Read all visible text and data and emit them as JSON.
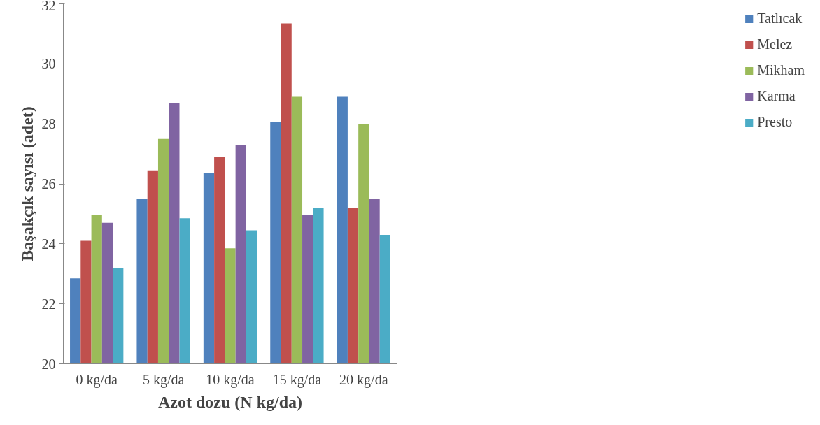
{
  "chart_data": {
    "type": "bar",
    "xlabel": "Azot dozu (N kg/da)",
    "ylabel": "Başakçık sayısı (adet)",
    "categories": [
      "0 kg/da",
      "5 kg/da",
      "10 kg/da",
      "15 kg/da",
      "20 kg/da"
    ],
    "series": [
      {
        "name": "Tatlıcak",
        "color": "#4f81bd",
        "values": [
          22.85,
          25.5,
          26.35,
          28.05,
          28.9
        ]
      },
      {
        "name": "Melez",
        "color": "#c0504d",
        "values": [
          24.1,
          26.45,
          26.9,
          31.35,
          25.2
        ]
      },
      {
        "name": "Mikham",
        "color": "#9bbb59",
        "values": [
          24.95,
          27.5,
          23.85,
          28.9,
          28.0
        ]
      },
      {
        "name": "Karma",
        "color": "#8064a2",
        "values": [
          24.7,
          28.7,
          27.3,
          24.95,
          25.5
        ]
      },
      {
        "name": "Presto",
        "color": "#4bacc6",
        "values": [
          23.2,
          24.85,
          24.45,
          25.2,
          24.3
        ]
      }
    ],
    "ylim": [
      20,
      32
    ],
    "yticks": [
      20,
      22,
      24,
      26,
      28,
      30,
      32
    ],
    "grid": false,
    "legend": "right"
  }
}
